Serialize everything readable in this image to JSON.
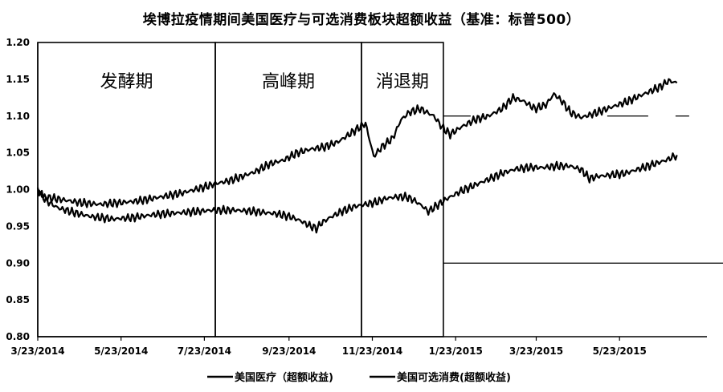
{
  "chart_data": {
    "type": "line",
    "title": "埃博拉疫情期间美国医疗与可选消费板块超额收益（基准：标普500）",
    "ylim": [
      0.8,
      1.2
    ],
    "y_ticks": [
      "1.20",
      "1.15",
      "1.10",
      "1.05",
      "1.00",
      "0.95",
      "0.90",
      "0.85",
      "0.80"
    ],
    "x_ticks": [
      "3/23/2014",
      "5/23/2014",
      "7/23/2014",
      "9/23/2014",
      "11/23/2014",
      "1/23/2015",
      "3/23/2015",
      "5/23/2015"
    ],
    "phases": [
      {
        "label": "发酵期",
        "start": "3/23/2014",
        "end": "7/31/2014"
      },
      {
        "label": "高峰期",
        "start": "7/31/2014",
        "end": "11/15/2014"
      },
      {
        "label": "消退期",
        "start": "11/15/2014",
        "end": "1/14/2015"
      }
    ],
    "series": [
      {
        "name": "美国医疗（超额收益)",
        "color": "#000000",
        "points": [
          [
            0,
            1.0
          ],
          [
            4,
            0.99
          ],
          [
            12,
            0.988
          ],
          [
            22,
            0.985
          ],
          [
            32,
            0.982
          ],
          [
            45,
            0.98
          ],
          [
            60,
            0.982
          ],
          [
            75,
            0.985
          ],
          [
            90,
            0.99
          ],
          [
            105,
            0.995
          ],
          [
            115,
            1.0
          ],
          [
            125,
            1.005
          ],
          [
            130,
            1.008
          ],
          [
            140,
            1.012
          ],
          [
            150,
            1.018
          ],
          [
            160,
            1.025
          ],
          [
            170,
            1.035
          ],
          [
            180,
            1.04
          ],
          [
            190,
            1.05
          ],
          [
            200,
            1.055
          ],
          [
            210,
            1.058
          ],
          [
            220,
            1.065
          ],
          [
            228,
            1.075
          ],
          [
            236,
            1.085
          ],
          [
            240,
            1.09
          ],
          [
            244,
            1.06
          ],
          [
            246,
            1.045
          ],
          [
            252,
            1.058
          ],
          [
            260,
            1.07
          ],
          [
            266,
            1.095
          ],
          [
            272,
            1.105
          ],
          [
            280,
            1.11
          ],
          [
            290,
            1.1
          ],
          [
            296,
            1.085
          ],
          [
            302,
            1.075
          ],
          [
            310,
            1.085
          ],
          [
            320,
            1.095
          ],
          [
            330,
            1.1
          ],
          [
            340,
            1.11
          ],
          [
            348,
            1.125
          ],
          [
            356,
            1.12
          ],
          [
            364,
            1.11
          ],
          [
            372,
            1.115
          ],
          [
            378,
            1.13
          ],
          [
            384,
            1.12
          ],
          [
            390,
            1.105
          ],
          [
            398,
            1.098
          ],
          [
            410,
            1.105
          ],
          [
            420,
            1.112
          ],
          [
            432,
            1.12
          ],
          [
            444,
            1.13
          ],
          [
            456,
            1.14
          ],
          [
            462,
            1.148
          ],
          [
            468,
            1.145
          ]
        ]
      },
      {
        "name": "美国可选消费(超额收益)",
        "color": "#000000",
        "points": [
          [
            0,
            1.0
          ],
          [
            6,
            0.985
          ],
          [
            15,
            0.975
          ],
          [
            28,
            0.968
          ],
          [
            40,
            0.963
          ],
          [
            55,
            0.96
          ],
          [
            70,
            0.962
          ],
          [
            85,
            0.966
          ],
          [
            100,
            0.968
          ],
          [
            115,
            0.97
          ],
          [
            128,
            0.972
          ],
          [
            145,
            0.972
          ],
          [
            160,
            0.97
          ],
          [
            175,
            0.967
          ],
          [
            185,
            0.963
          ],
          [
            192,
            0.958
          ],
          [
            198,
            0.952
          ],
          [
            204,
            0.947
          ],
          [
            208,
            0.955
          ],
          [
            214,
            0.962
          ],
          [
            222,
            0.97
          ],
          [
            232,
            0.977
          ],
          [
            240,
            0.98
          ],
          [
            248,
            0.983
          ],
          [
            255,
            0.988
          ],
          [
            262,
            0.99
          ],
          [
            270,
            0.99
          ],
          [
            276,
            0.985
          ],
          [
            282,
            0.977
          ],
          [
            286,
            0.97
          ],
          [
            292,
            0.978
          ],
          [
            300,
            0.988
          ],
          [
            310,
            0.998
          ],
          [
            320,
            1.006
          ],
          [
            330,
            1.014
          ],
          [
            340,
            1.022
          ],
          [
            350,
            1.028
          ],
          [
            360,
            1.03
          ],
          [
            370,
            1.03
          ],
          [
            380,
            1.032
          ],
          [
            390,
            1.032
          ],
          [
            398,
            1.027
          ],
          [
            404,
            1.015
          ],
          [
            410,
            1.018
          ],
          [
            420,
            1.02
          ],
          [
            430,
            1.022
          ],
          [
            440,
            1.028
          ],
          [
            450,
            1.034
          ],
          [
            460,
            1.04
          ],
          [
            468,
            1.047
          ]
        ]
      }
    ],
    "ref_lines": [
      {
        "y": 1.1,
        "segments": [
          [
            0,
            20
          ],
          [
            120,
            150
          ],
          [
            170,
            180
          ],
          [
            230,
            310
          ]
        ]
      },
      {
        "y": 0.9,
        "segments": [
          [
            0,
            310
          ]
        ]
      }
    ]
  }
}
